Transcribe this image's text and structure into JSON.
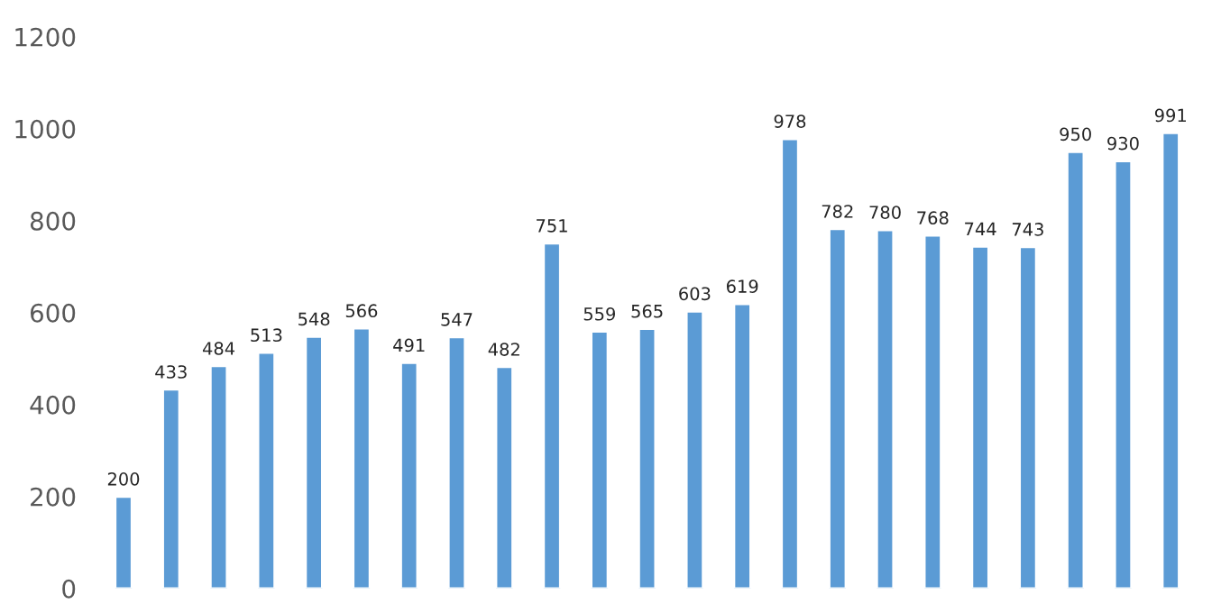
{
  "chart_data": {
    "type": "bar",
    "categories": [
      null,
      null,
      null,
      null,
      null,
      null,
      null,
      null,
      null,
      null,
      null,
      null,
      null,
      null,
      null,
      null,
      null,
      null,
      null,
      null,
      null,
      null,
      null
    ],
    "values": [
      200,
      433,
      484,
      513,
      548,
      566,
      491,
      547,
      482,
      751,
      559,
      565,
      603,
      619,
      978,
      782,
      780,
      768,
      744,
      743,
      950,
      930,
      991
    ],
    "color": "#5b9bd5",
    "ylim": [
      0,
      1200
    ],
    "yticks": [
      0,
      200,
      400,
      600,
      800,
      1000,
      1200
    ],
    "data_labels": true,
    "tick_labels": "y",
    "grid": false,
    "legend": false
  }
}
